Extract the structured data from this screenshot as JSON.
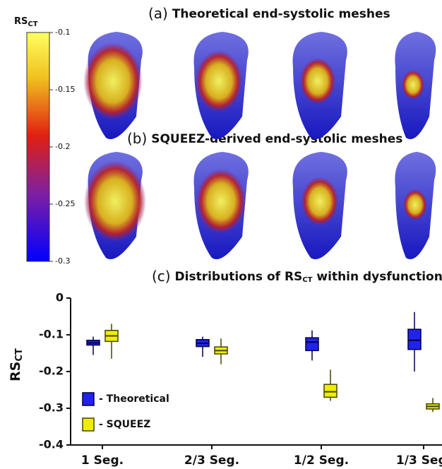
{
  "panels": {
    "a": {
      "label": "(a)",
      "title": "Theoretical end-systolic meshes"
    },
    "b": {
      "label": "(b)",
      "title": "SQUEEZ-derived end-systolic meshes"
    }
  },
  "colorbar": {
    "title": "RS",
    "title_sub": "CT",
    "lim": [
      -0.1,
      -0.3
    ],
    "ticks": [
      -0.1,
      -0.15,
      -0.2,
      -0.25,
      -0.3
    ]
  },
  "chart_data": {
    "type": "box",
    "label": "(c)",
    "title": "Distributions of RS",
    "title_sub": "CT",
    "title_end": "within dysfunctional core",
    "ylabel": "RS",
    "ylabel_sub": "CT",
    "categories": [
      "1 Seg.",
      "2/3 Seg.",
      "1/2 Seg.",
      "1/3 Seg."
    ],
    "ylim": [
      -0.4,
      0
    ],
    "yticks": [
      -0.4,
      -0.3,
      -0.2,
      -0.1,
      0
    ],
    "series": [
      {
        "name": "- Theoretical",
        "color": "#2222ee",
        "values": [
          {
            "min": -0.155,
            "q1": -0.128,
            "median": -0.122,
            "q3": -0.115,
            "max": -0.105
          },
          {
            "min": -0.16,
            "q1": -0.132,
            "median": -0.123,
            "q3": -0.113,
            "max": -0.105
          },
          {
            "min": -0.17,
            "q1": -0.143,
            "median": -0.12,
            "q3": -0.108,
            "max": -0.088
          },
          {
            "min": -0.2,
            "q1": -0.14,
            "median": -0.115,
            "q3": -0.085,
            "max": -0.038
          }
        ]
      },
      {
        "name": "- SQUEEZ",
        "color": "#eeee00",
        "values": [
          {
            "min": -0.165,
            "q1": -0.118,
            "median": -0.103,
            "q3": -0.088,
            "max": -0.07
          },
          {
            "min": -0.18,
            "q1": -0.152,
            "median": -0.143,
            "q3": -0.133,
            "max": -0.11
          },
          {
            "min": -0.28,
            "q1": -0.27,
            "median": -0.255,
            "q3": -0.235,
            "max": -0.195
          },
          {
            "min": -0.31,
            "q1": -0.302,
            "median": -0.295,
            "q3": -0.288,
            "max": -0.272
          }
        ]
      }
    ]
  }
}
